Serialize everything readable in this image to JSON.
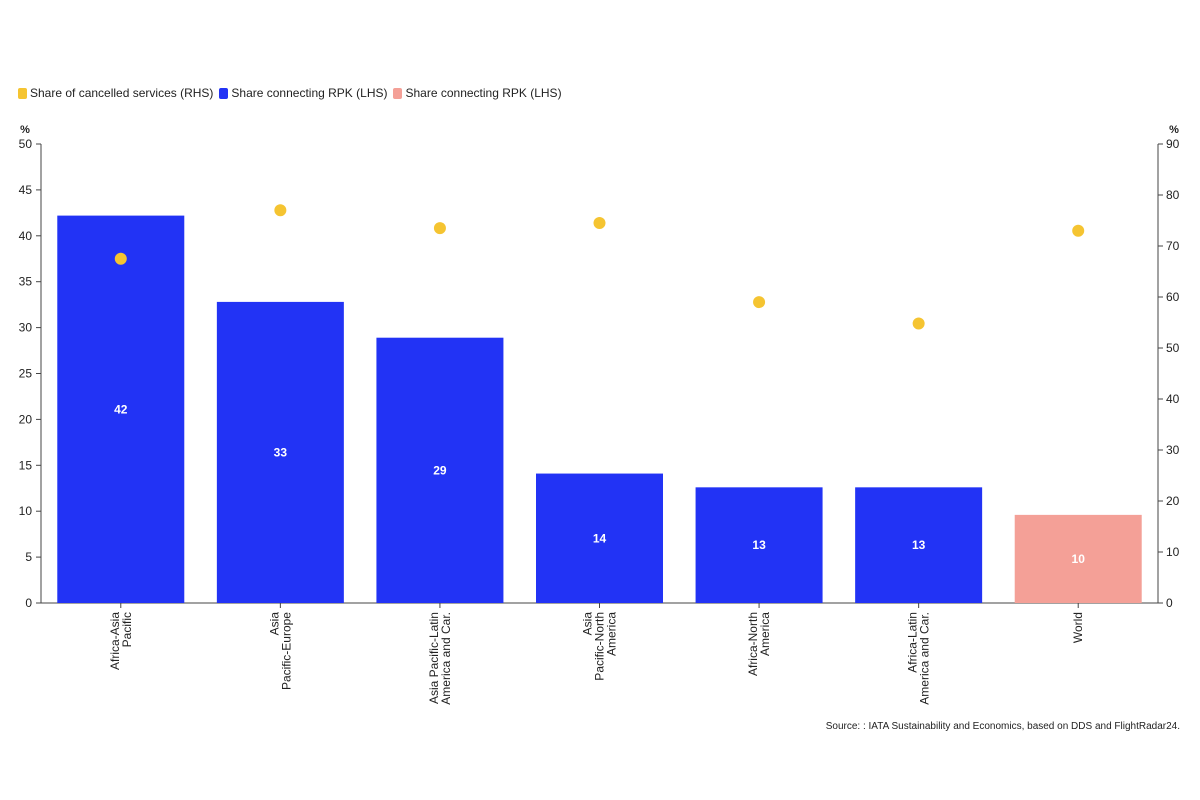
{
  "legend": [
    {
      "label": "Share of cancelled services (RHS)",
      "color": "#f5c431"
    },
    {
      "label": "Share connecting RPK (LHS)",
      "color": "#2233f5"
    },
    {
      "label": "Share connecting RPK (LHS)",
      "color": "#f4a097"
    }
  ],
  "source": "Source: : IATA Sustainability and Economics, based on DDS and FlightRadar24.",
  "chart_data": {
    "type": "bar",
    "title": "",
    "left_axis": {
      "unit": "%",
      "min": 0,
      "max": 50,
      "ticks": [
        0,
        5,
        10,
        15,
        20,
        25,
        30,
        35,
        40,
        45,
        50
      ]
    },
    "right_axis": {
      "unit": "%",
      "min": 0,
      "max": 90,
      "ticks": [
        0,
        10,
        20,
        30,
        40,
        50,
        60,
        70,
        80,
        90
      ]
    },
    "categories": [
      [
        "Africa-Asia",
        "Pacific"
      ],
      [
        "Asia",
        "Pacific-Europe"
      ],
      [
        "Asia Pacific-Latin",
        "America and Car."
      ],
      [
        "Asia",
        "Pacific-North",
        "America"
      ],
      [
        "Africa-North",
        "America"
      ],
      [
        "Africa-Latin",
        "America and Car."
      ],
      [
        "World"
      ]
    ],
    "series": [
      {
        "name": "Share connecting RPK (LHS)",
        "kind": "bar",
        "axis": "left",
        "values": [
          42.2,
          32.8,
          28.9,
          14.1,
          12.6,
          12.6,
          9.6
        ],
        "labels": [
          "42",
          "33",
          "29",
          "14",
          "13",
          "13",
          "10"
        ],
        "colors": [
          "#2233f5",
          "#2233f5",
          "#2233f5",
          "#2233f5",
          "#2233f5",
          "#2233f5",
          "#f4a097"
        ]
      },
      {
        "name": "Share of cancelled services (RHS)",
        "kind": "scatter",
        "axis": "right",
        "values": [
          67.5,
          77.0,
          73.5,
          74.5,
          59.0,
          54.8,
          73.0
        ],
        "color": "#f5c431"
      }
    ],
    "grid": false,
    "legend_position": "top-left"
  }
}
